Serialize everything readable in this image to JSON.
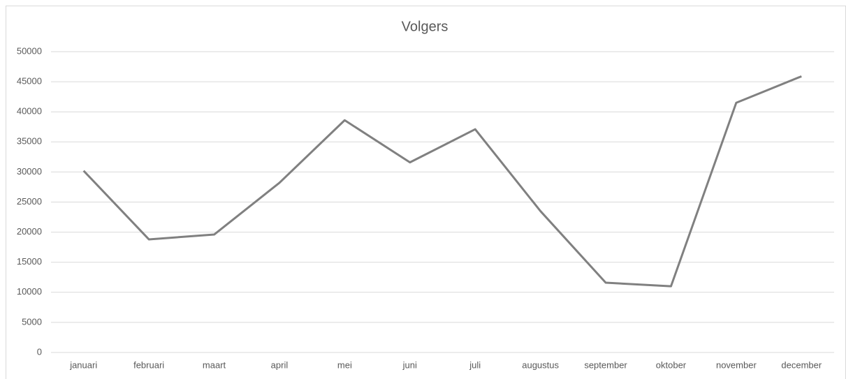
{
  "chart_data": {
    "type": "line",
    "title": "Volgers",
    "categories": [
      "januari",
      "februari",
      "maart",
      "april",
      "mei",
      "juni",
      "juli",
      "augustus",
      "september",
      "oktober",
      "november",
      "december"
    ],
    "series": [
      {
        "name": "Volgers",
        "color": "#808080",
        "values": [
          30200,
          18800,
          19600,
          28200,
          38600,
          31600,
          37100,
          23500,
          11600,
          11000,
          41500,
          45900
        ]
      }
    ],
    "ylim": [
      0,
      50000
    ],
    "yticks": [
      0,
      5000,
      10000,
      15000,
      20000,
      25000,
      30000,
      35000,
      40000,
      45000,
      50000
    ],
    "grid": true
  }
}
